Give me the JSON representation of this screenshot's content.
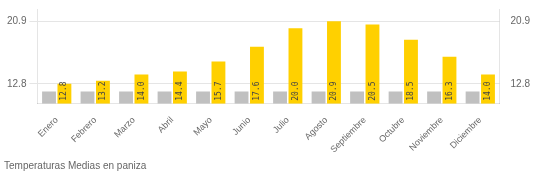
{
  "chart_data": {
    "type": "bar",
    "title": "Temperaturas Medias en paniza",
    "categories": [
      "Enero",
      "Febrero",
      "Marzo",
      "Abril",
      "Mayo",
      "Junio",
      "Julio",
      "Agosto",
      "Septiembre",
      "Octubre",
      "Noviembre",
      "Diciembre"
    ],
    "series": [
      {
        "color": "#C0C0C0",
        "values": [
          11.8,
          11.8,
          11.8,
          11.8,
          11.8,
          11.8,
          11.8,
          11.8,
          11.8,
          11.8,
          11.8,
          11.8
        ]
      },
      {
        "color": "#FFD000",
        "data_labels": true,
        "values": [
          12.8,
          13.2,
          14.0,
          14.4,
          15.7,
          17.6,
          20.0,
          20.9,
          20.5,
          18.5,
          16.3,
          14.0
        ],
        "value_labels": [
          "12.8",
          "13.2",
          "14.0",
          "14.4",
          "15.7",
          "17.6",
          "20.0",
          "20.9",
          "20.5",
          "18.5",
          "16.3",
          "14.0"
        ]
      }
    ],
    "ylim": [
      10.2,
      22.5
    ],
    "yticks": [
      12.8,
      20.9
    ],
    "y2lim": [
      10.2,
      22.5
    ],
    "y2ticks": [
      12.8,
      20.9
    ],
    "grid": true
  }
}
